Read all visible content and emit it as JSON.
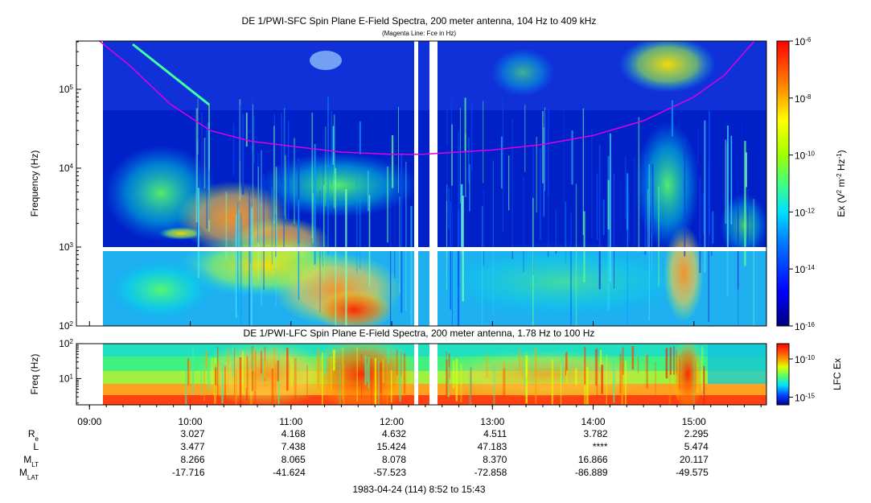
{
  "chart_data": [
    {
      "type": "heatmap",
      "title": "DE 1/PWI-SFC  Spin Plane E-Field Spectra, 200 meter antenna, 104 Hz to 409 kHz",
      "subtitle": "(Magenta Line: Fce in Hz)",
      "ylabel": "Frequency (Hz)",
      "y_scale": "log",
      "ylim": [
        100,
        409000
      ],
      "y_ticks": [
        {
          "value": 100,
          "base": "10",
          "exp": "2"
        },
        {
          "value": 1000,
          "base": "10",
          "exp": "3"
        },
        {
          "value": 10000,
          "base": "10",
          "exp": "4"
        },
        {
          "value": 100000,
          "base": "10",
          "exp": "5"
        }
      ],
      "time_range_hours": [
        8.87,
        15.72
      ],
      "colorbar": {
        "label": "Ex (V² m⁻² Hz⁻¹)",
        "label_parts": [
          "Ex (V",
          "2",
          " m",
          "-2",
          " Hz",
          "-1",
          ")"
        ],
        "scale": "log",
        "range": [
          1e-16,
          1e-06
        ],
        "ticks": [
          {
            "value": 1e-06,
            "base": "10",
            "exp": "-6"
          },
          {
            "value": 1e-08,
            "base": "10",
            "exp": "-8"
          },
          {
            "value": 1e-10,
            "base": "10",
            "exp": "-10"
          },
          {
            "value": 1e-12,
            "base": "10",
            "exp": "-12"
          },
          {
            "value": 1e-14,
            "base": "10",
            "exp": "-14"
          },
          {
            "value": 1e-16,
            "base": "10",
            "exp": "-16"
          }
        ]
      },
      "overlay_line": {
        "color": "#e000e0",
        "points": [
          [
            9.1,
            409000
          ],
          [
            9.4,
            200000
          ],
          [
            9.8,
            65000
          ],
          [
            10.2,
            30000
          ],
          [
            10.6,
            22000
          ],
          [
            11.0,
            19000
          ],
          [
            11.5,
            16000
          ],
          [
            12.0,
            15000
          ],
          [
            12.3,
            15000
          ],
          [
            12.5,
            15500
          ],
          [
            13.0,
            17000
          ],
          [
            13.5,
            20000
          ],
          [
            14.0,
            26000
          ],
          [
            14.5,
            40000
          ],
          [
            15.0,
            80000
          ],
          [
            15.3,
            150000
          ],
          [
            15.6,
            409000
          ]
        ]
      }
    },
    {
      "type": "heatmap",
      "title": "DE 1/PWI-LFC  Spin Plane E-Field Spectra, 200 meter antenna, 1.78 Hz to 100 Hz",
      "ylabel": "Freq (Hz)",
      "y_scale": "log",
      "ylim": [
        1.78,
        100
      ],
      "y_ticks": [
        {
          "value": 100,
          "base": "10",
          "exp": "2"
        },
        {
          "value": 10,
          "base": "10",
          "exp": "1"
        }
      ],
      "colorbar": {
        "label": "LFC Ex",
        "scale": "log",
        "range": [
          1e-16,
          1e-08
        ],
        "ticks": [
          {
            "value": 1e-10,
            "base": "10",
            "exp": "-10"
          },
          {
            "value": 1e-15,
            "base": "10",
            "exp": "-15"
          }
        ]
      }
    }
  ],
  "time_axis": {
    "ticks": [
      "09:00",
      "10:00",
      "11:00",
      "12:00",
      "13:00",
      "14:00",
      "15:00"
    ],
    "start_hour": 8.87,
    "end_hour": 15.72
  },
  "ephemeris": [
    {
      "label": "R",
      "sub": "e",
      "values": [
        "3.027",
        "4.168",
        "4.632",
        "4.511",
        "3.782",
        "2.295"
      ]
    },
    {
      "label": "L",
      "sub": "",
      "values": [
        "3.477",
        "7.438",
        "15.424",
        "47.183",
        "****",
        "5.474"
      ]
    },
    {
      "label": "M",
      "sub": "LT",
      "values": [
        "8.266",
        "8.065",
        "8.078",
        "8.370",
        "16.866",
        "20.117"
      ]
    },
    {
      "label": "M",
      "sub": "LAT",
      "values": [
        "-17.716",
        "-41.624",
        "-57.523",
        "-72.858",
        "-86.889",
        "-49.575"
      ]
    }
  ],
  "footer": "1983-04-24 (114) 8:52 to 15:43"
}
